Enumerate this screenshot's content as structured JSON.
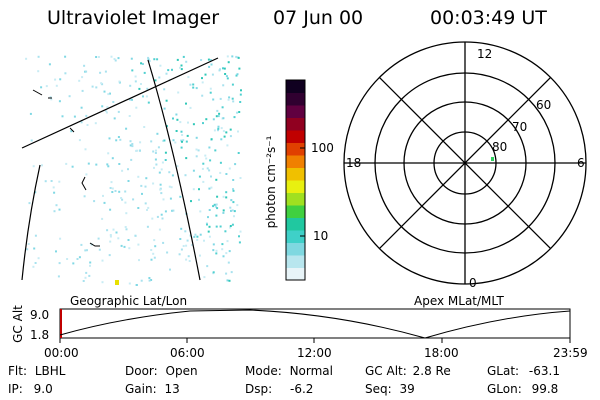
{
  "header": {
    "instrument": "Ultraviolet Imager",
    "date": "07 Jun 00",
    "time": "00:03:49 UT"
  },
  "left_panel": {
    "label": "Geographic Lat/Lon"
  },
  "colorbar": {
    "unit_label": "photon cm⁻²s⁻¹",
    "ticks": [
      "100",
      "10"
    ],
    "colors": [
      "#e8f4f8",
      "#b8e6ee",
      "#7fd8e0",
      "#3fd0c8",
      "#20c8a0",
      "#40d040",
      "#a0e020",
      "#e8f010",
      "#f0c000",
      "#f08000",
      "#e04000",
      "#c00000",
      "#900020",
      "#600040",
      "#300030",
      "#100020"
    ]
  },
  "polar_plot": {
    "label": "Apex MLat/MLT",
    "mlt_labels": {
      "top": "12",
      "left": "18",
      "right": "6",
      "bottom": "0"
    },
    "lat_labels": [
      "60",
      "70",
      "80"
    ]
  },
  "altitude_plot": {
    "ylabel": "GC Alt",
    "yticks": [
      "9.0",
      "1.8"
    ],
    "xticks": [
      "00:00",
      "06:00",
      "12:00",
      "18:00",
      "23:59"
    ]
  },
  "info": {
    "flt": {
      "label": "Flt:",
      "value": "LBHL"
    },
    "ip": {
      "label": "IP:",
      "value": "9.0"
    },
    "door": {
      "label": "Door:",
      "value": "Open"
    },
    "gain": {
      "label": "Gain:",
      "value": "13"
    },
    "mode": {
      "label": "Mode:",
      "value": "Normal"
    },
    "dsp": {
      "label": "Dsp:",
      "value": "-6.2"
    },
    "gcalt": {
      "label": "GC Alt:",
      "value": "2.8 Re"
    },
    "seq": {
      "label": "Seq:",
      "value": "39"
    },
    "glat": {
      "label": "GLat:",
      "value": "-63.1"
    },
    "glon": {
      "label": "GLon:",
      "value": "99.8"
    }
  }
}
